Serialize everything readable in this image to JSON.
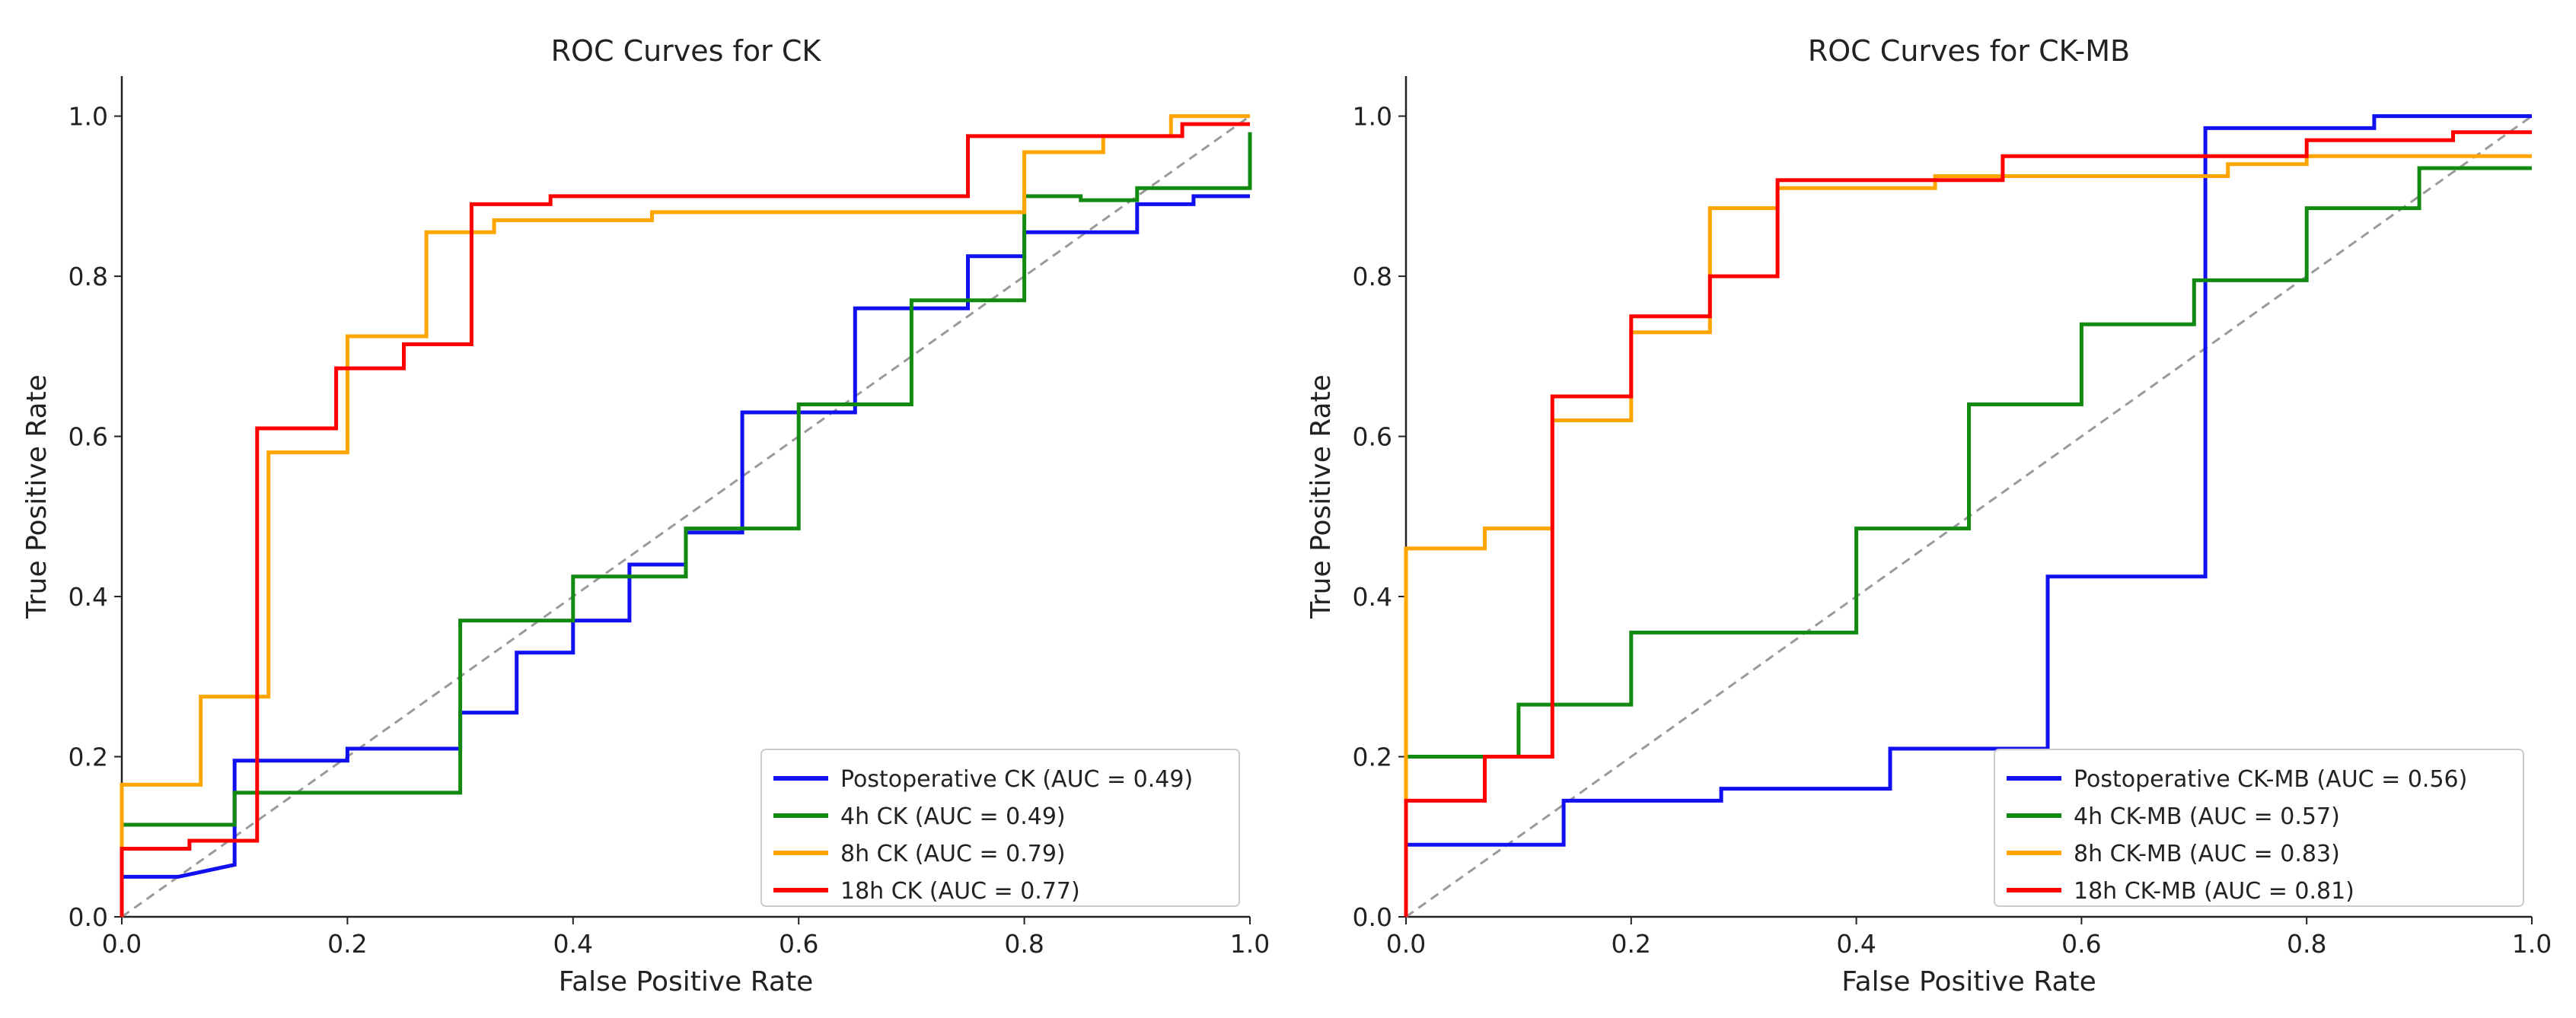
{
  "chart_data": [
    {
      "type": "line",
      "title": "ROC Curves for CK",
      "xlabel": "False Positive Rate",
      "ylabel": "True Positive Rate",
      "xlim": [
        0,
        1
      ],
      "ylim": [
        0,
        1.05
      ],
      "xticks": [
        "0.0",
        "0.2",
        "0.4",
        "0.6",
        "0.8",
        "1.0"
      ],
      "yticks": [
        "0.0",
        "0.2",
        "0.4",
        "0.6",
        "0.8",
        "1.0"
      ],
      "grid": false,
      "legend_position": "lower-right",
      "diagonal": true,
      "series": [
        {
          "name": "Postoperative CK (AUC = 0.49)",
          "color": "#1010f0",
          "x": [
            0,
            0,
            0.05,
            0.1,
            0.1,
            0.2,
            0.2,
            0.3,
            0.3,
            0.35,
            0.35,
            0.4,
            0.4,
            0.45,
            0.45,
            0.5,
            0.5,
            0.55,
            0.55,
            0.65,
            0.65,
            0.75,
            0.75,
            0.8,
            0.8,
            0.9,
            0.9,
            0.95,
            0.95,
            1
          ],
          "y": [
            0,
            0.05,
            0.05,
            0.065,
            0.195,
            0.195,
            0.21,
            0.21,
            0.255,
            0.255,
            0.33,
            0.33,
            0.37,
            0.37,
            0.44,
            0.44,
            0.48,
            0.48,
            0.63,
            0.63,
            0.76,
            0.76,
            0.825,
            0.825,
            0.855,
            0.855,
            0.89,
            0.89,
            0.9,
            0.9
          ]
        },
        {
          "name": "4h CK (AUC = 0.49)",
          "color": "#128a12",
          "x": [
            0,
            0,
            0.1,
            0.1,
            0.3,
            0.3,
            0.4,
            0.4,
            0.5,
            0.5,
            0.6,
            0.6,
            0.7,
            0.7,
            0.8,
            0.8,
            0.85,
            0.85,
            0.9,
            0.9,
            1,
            1
          ],
          "y": [
            0,
            0.115,
            0.115,
            0.155,
            0.155,
            0.37,
            0.37,
            0.425,
            0.425,
            0.485,
            0.485,
            0.64,
            0.64,
            0.77,
            0.77,
            0.9,
            0.9,
            0.895,
            0.895,
            0.91,
            0.91,
            0.98
          ]
        },
        {
          "name": "8h CK (AUC = 0.79)",
          "color": "#ffa500",
          "x": [
            0,
            0,
            0.07,
            0.07,
            0.13,
            0.13,
            0.2,
            0.2,
            0.27,
            0.27,
            0.33,
            0.33,
            0.47,
            0.47,
            0.8,
            0.8,
            0.87,
            0.87,
            0.93,
            0.93,
            1
          ],
          "y": [
            0,
            0.165,
            0.165,
            0.275,
            0.275,
            0.58,
            0.58,
            0.725,
            0.725,
            0.855,
            0.855,
            0.87,
            0.87,
            0.88,
            0.88,
            0.955,
            0.955,
            0.975,
            0.975,
            1,
            1
          ]
        },
        {
          "name": "18h CK (AUC = 0.77)",
          "color": "#ff0000",
          "x": [
            0,
            0,
            0.06,
            0.06,
            0.12,
            0.12,
            0.19,
            0.19,
            0.25,
            0.25,
            0.31,
            0.31,
            0.38,
            0.38,
            0.75,
            0.75,
            0.94,
            0.94,
            1
          ],
          "y": [
            0,
            0.085,
            0.085,
            0.095,
            0.095,
            0.61,
            0.61,
            0.685,
            0.685,
            0.715,
            0.715,
            0.89,
            0.89,
            0.9,
            0.9,
            0.975,
            0.975,
            0.99,
            0.99
          ]
        }
      ]
    },
    {
      "type": "line",
      "title": "ROC Curves for CK-MB",
      "xlabel": "False Positive Rate",
      "ylabel": "True Positive Rate",
      "xlim": [
        0,
        1
      ],
      "ylim": [
        0,
        1.05
      ],
      "xticks": [
        "0.0",
        "0.2",
        "0.4",
        "0.6",
        "0.8",
        "1.0"
      ],
      "yticks": [
        "0.0",
        "0.2",
        "0.4",
        "0.6",
        "0.8",
        "1.0"
      ],
      "grid": false,
      "legend_position": "lower-right",
      "diagonal": true,
      "series": [
        {
          "name": "Postoperative CK-MB (AUC = 0.56)",
          "color": "#1010f0",
          "x": [
            0,
            0,
            0.14,
            0.14,
            0.28,
            0.28,
            0.43,
            0.43,
            0.57,
            0.57,
            0.71,
            0.71,
            0.86,
            0.86,
            1,
            1
          ],
          "y": [
            0,
            0.09,
            0.09,
            0.145,
            0.145,
            0.16,
            0.16,
            0.21,
            0.21,
            0.425,
            0.425,
            0.985,
            0.985,
            1,
            1,
            1
          ]
        },
        {
          "name": "4h CK-MB (AUC = 0.57)",
          "color": "#128a12",
          "x": [
            0,
            0,
            0.1,
            0.1,
            0.2,
            0.2,
            0.4,
            0.4,
            0.5,
            0.5,
            0.6,
            0.6,
            0.7,
            0.7,
            0.8,
            0.8,
            0.9,
            0.9,
            1
          ],
          "y": [
            0,
            0.2,
            0.2,
            0.265,
            0.265,
            0.355,
            0.355,
            0.485,
            0.485,
            0.64,
            0.64,
            0.74,
            0.74,
            0.795,
            0.795,
            0.885,
            0.885,
            0.935,
            0.935
          ]
        },
        {
          "name": "8h CK-MB (AUC = 0.83)",
          "color": "#ffa500",
          "x": [
            0,
            0,
            0.07,
            0.07,
            0.13,
            0.13,
            0.2,
            0.2,
            0.27,
            0.27,
            0.33,
            0.33,
            0.47,
            0.47,
            0.73,
            0.73,
            0.8,
            0.8,
            1
          ],
          "y": [
            0,
            0.46,
            0.46,
            0.485,
            0.485,
            0.62,
            0.62,
            0.73,
            0.73,
            0.885,
            0.885,
            0.91,
            0.91,
            0.925,
            0.925,
            0.94,
            0.94,
            0.95,
            0.95
          ]
        },
        {
          "name": "18h CK-MB (AUC = 0.81)",
          "color": "#ff0000",
          "x": [
            0,
            0,
            0.07,
            0.07,
            0.13,
            0.13,
            0.2,
            0.2,
            0.27,
            0.27,
            0.33,
            0.33,
            0.53,
            0.53,
            0.8,
            0.8,
            0.93,
            0.93,
            1
          ],
          "y": [
            0,
            0.145,
            0.145,
            0.2,
            0.2,
            0.65,
            0.65,
            0.75,
            0.75,
            0.8,
            0.8,
            0.92,
            0.92,
            0.95,
            0.95,
            0.97,
            0.97,
            0.98,
            0.98
          ]
        }
      ]
    }
  ]
}
